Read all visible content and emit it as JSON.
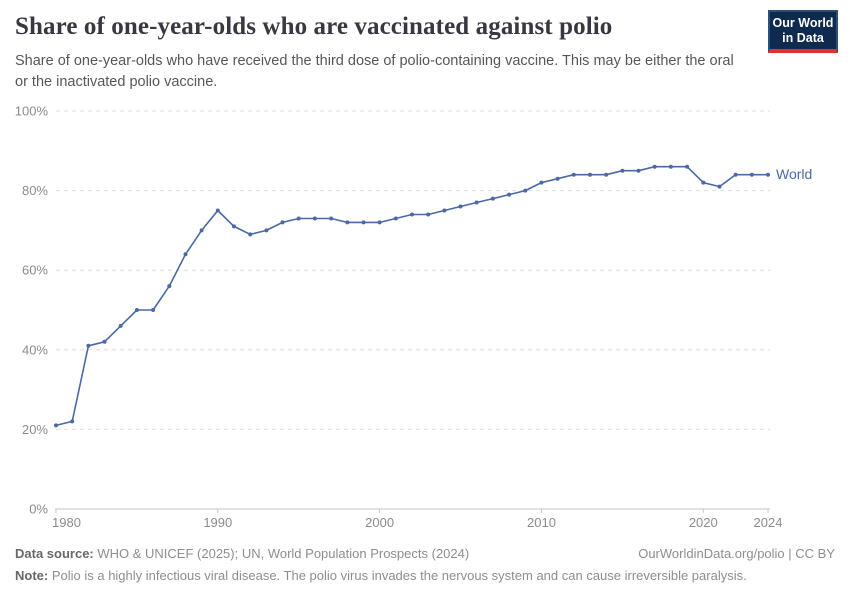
{
  "header": {
    "title": "Share of one-year-olds who are vaccinated against polio",
    "subtitle": "Share of one-year-olds who have received the third dose of polio-containing vaccine. This may be either the oral or the inactivated polio vaccine.",
    "logo": {
      "line1": "Our World",
      "line2": "in Data",
      "bg_color": "#0e2a4e",
      "bar_color": "#dc352f"
    }
  },
  "chart_data": {
    "type": "line",
    "title": "Share of one-year-olds who are vaccinated against polio",
    "x": [
      1980,
      1981,
      1982,
      1983,
      1984,
      1985,
      1986,
      1987,
      1988,
      1989,
      1990,
      1991,
      1992,
      1993,
      1994,
      1995,
      1996,
      1997,
      1998,
      1999,
      2000,
      2001,
      2002,
      2003,
      2004,
      2005,
      2006,
      2007,
      2008,
      2009,
      2010,
      2011,
      2012,
      2013,
      2014,
      2015,
      2016,
      2017,
      2018,
      2019,
      2020,
      2021,
      2022,
      2023,
      2024
    ],
    "series": [
      {
        "name": "World",
        "color": "#4a69a5",
        "values": [
          21,
          22,
          41,
          42,
          46,
          50,
          50,
          56,
          64,
          70,
          75,
          71,
          69,
          70,
          72,
          73,
          73,
          73,
          72,
          72,
          72,
          73,
          74,
          74,
          75,
          76,
          77,
          78,
          79,
          80,
          82,
          83,
          84,
          84,
          84,
          85,
          85,
          86,
          86,
          86,
          82,
          81,
          84,
          84,
          84
        ]
      }
    ],
    "xlabel": "",
    "ylabel": "",
    "xlim": [
      1980,
      2024
    ],
    "ylim": [
      0,
      100
    ],
    "xticks": [
      1980,
      1990,
      2000,
      2010,
      2020,
      2024
    ],
    "yticks": [
      0,
      20,
      40,
      60,
      80,
      100
    ],
    "ytick_suffix": "%",
    "grid": "horizontal-dashed",
    "legend": "end-of-line-label"
  },
  "footer": {
    "source_label": "Data source:",
    "source_text": " WHO & UNICEF (2025); UN, World Population Prospects (2024)",
    "rights": "OurWorldinData.org/polio | CC BY",
    "note_label": "Note:",
    "note_text": " Polio is a highly infectious viral disease. The polio virus invades the nervous system and can cause irreversible paralysis."
  }
}
